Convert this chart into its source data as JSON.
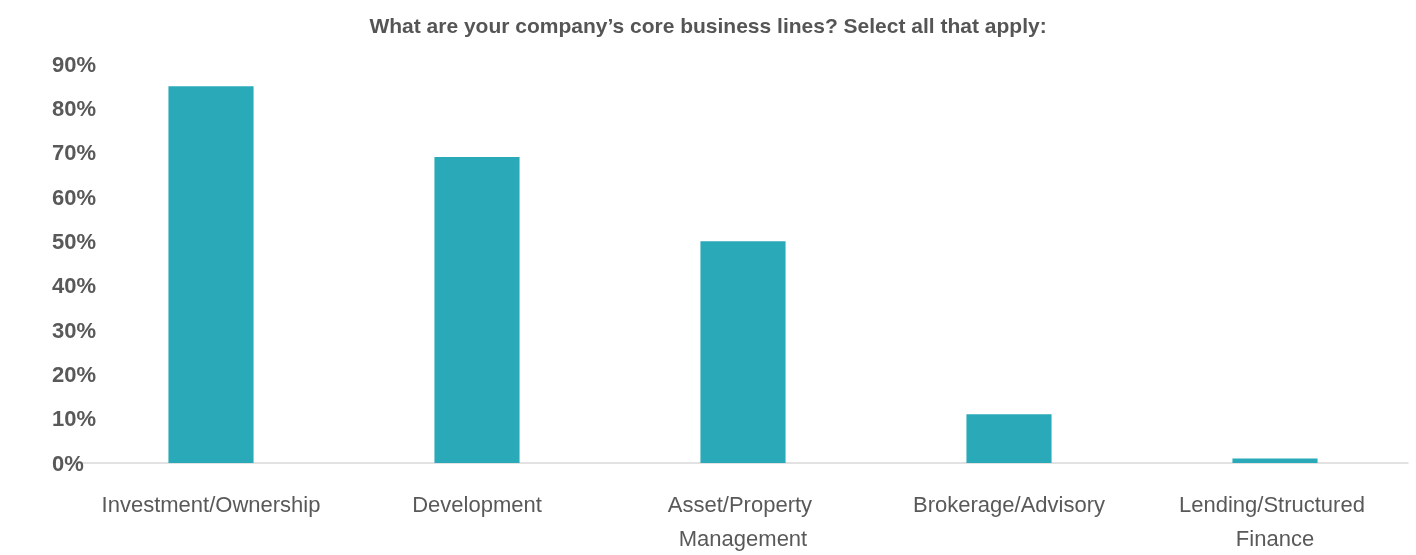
{
  "chart_data": {
    "type": "bar",
    "title": "What are your company’s core business lines? Select all that apply:",
    "categories": [
      "Investment/Ownership",
      "Development",
      "Asset/Property Management",
      "Brokerage/Advisory",
      "Lending/Structured Finance"
    ],
    "values": [
      85,
      69,
      50,
      11,
      1
    ],
    "color": "#2aa9b8",
    "ylim": [
      0,
      90
    ],
    "yticks": [
      {
        "value": 0,
        "label": "0%"
      },
      {
        "value": 10,
        "label": "10%"
      },
      {
        "value": 20,
        "label": "20%"
      },
      {
        "value": 30,
        "label": "30%"
      },
      {
        "value": 40,
        "label": "40%"
      },
      {
        "value": 50,
        "label": "50%"
      },
      {
        "value": 60,
        "label": "60%"
      },
      {
        "value": 70,
        "label": "70%"
      },
      {
        "value": 80,
        "label": "80%"
      },
      {
        "value": 90,
        "label": "90%"
      }
    ],
    "grid": false
  }
}
